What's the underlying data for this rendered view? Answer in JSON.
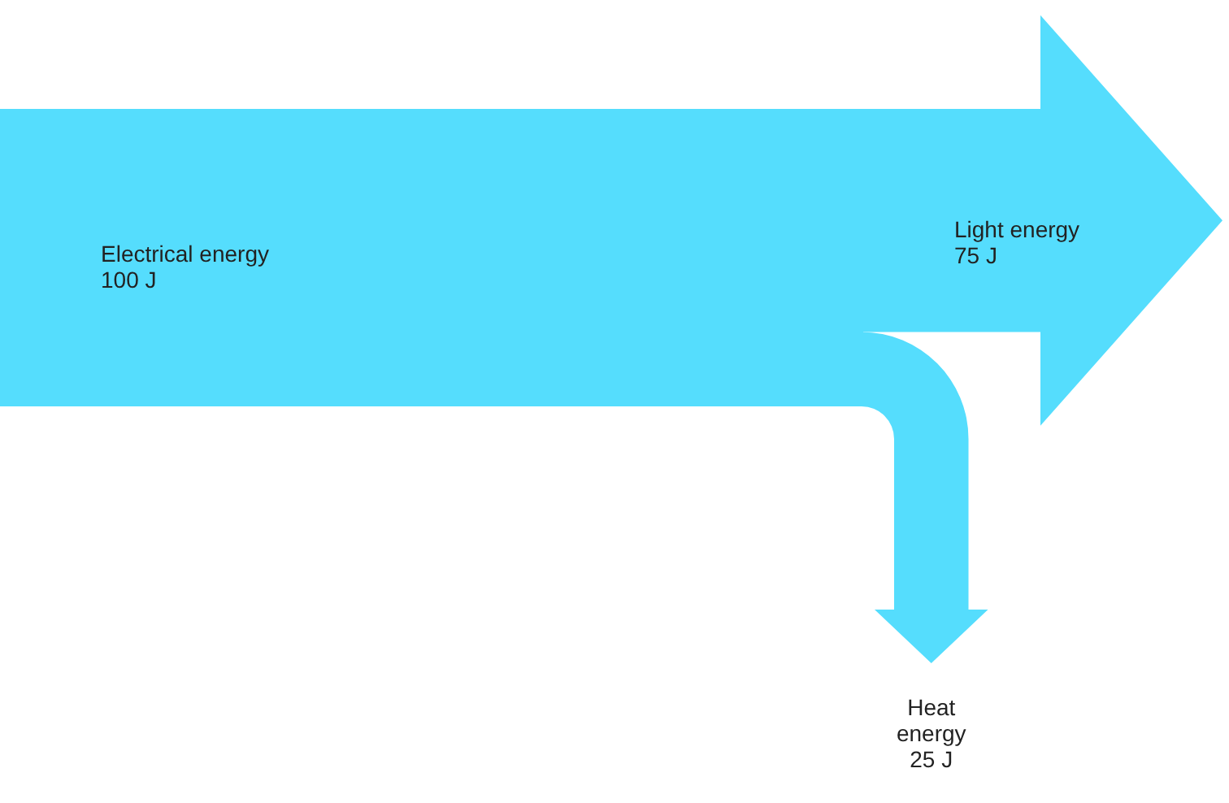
{
  "chart_data": {
    "type": "other",
    "categories": [
      "Electrical energy",
      "Light energy",
      "Heat energy"
    ],
    "values": [
      100,
      75,
      25
    ],
    "value_labels": [
      "100 J",
      "75 J",
      "25 J"
    ],
    "colors": [
      "#55ddfd",
      "#55ddfd",
      "#55ddfd"
    ]
  }
}
